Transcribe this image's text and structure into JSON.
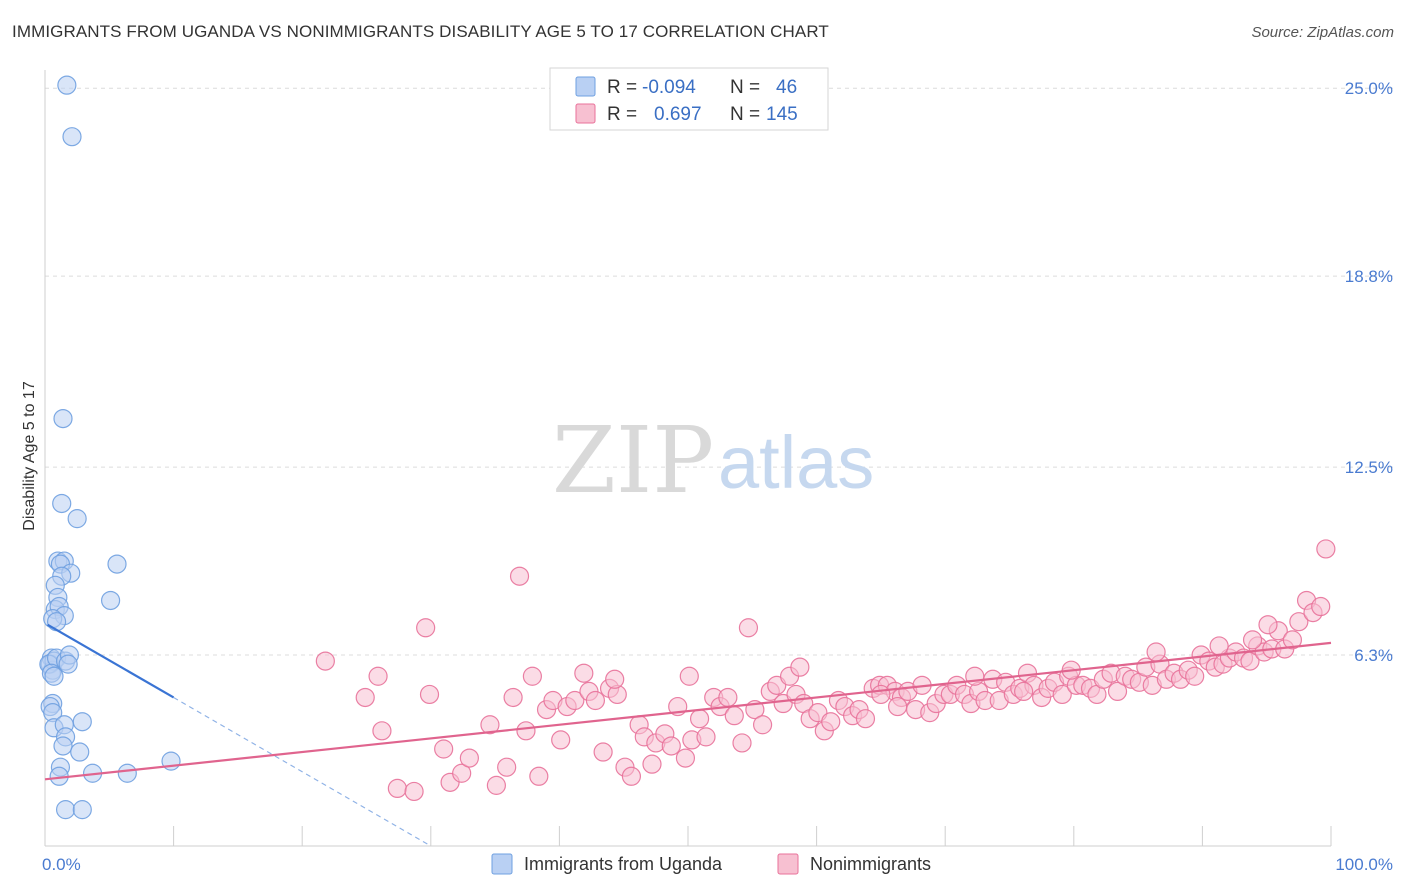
{
  "title": "IMMIGRANTS FROM UGANDA VS NONIMMIGRANTS DISABILITY AGE 5 TO 17 CORRELATION CHART",
  "source": "Source: ZipAtlas.com",
  "watermark": {
    "zip": "ZIP",
    "atlas": "atlas"
  },
  "colors": {
    "blue": "#6fa0e0",
    "blue_fill": "#b9d0f3",
    "pink": "#e8729a",
    "pink_fill": "#f7c0d1",
    "axis_text": "#4a7bd0"
  },
  "chart_data": {
    "type": "scatter",
    "title": "IMMIGRANTS FROM UGANDA VS NONIMMIGRANTS DISABILITY AGE 5 TO 17 CORRELATION CHART",
    "xlabel": "",
    "ylabel": "Disability Age 5 to 17",
    "xlim": [
      0,
      100
    ],
    "ylim": [
      0,
      25.6
    ],
    "x_tick_labels": [
      "0.0%",
      "100.0%"
    ],
    "y_ticks": [
      {
        "value": 6.3,
        "label": "6.3%"
      },
      {
        "value": 12.5,
        "label": "12.5%"
      },
      {
        "value": 18.8,
        "label": "18.8%"
      },
      {
        "value": 25.0,
        "label": "25.0%"
      }
    ],
    "grid": true,
    "legend": [
      {
        "series": "Immigrants from Uganda",
        "r_label": "R =",
        "r": "-0.094",
        "n_label": "N =",
        "n": "46"
      },
      {
        "series": "Nonimmigrants",
        "r_label": "R =",
        "r": "0.697",
        "n_label": "N =",
        "n": "145"
      }
    ],
    "series": [
      {
        "name": "Immigrants from Uganda",
        "color": "#6fa0e0",
        "trend": {
          "x0": 0.2,
          "y0": 7.3,
          "x1": 10.0,
          "y1": 4.9,
          "dash_to_x": 30.0,
          "dash_to_y": 0.0
        },
        "points": [
          [
            1.7,
            25.1
          ],
          [
            2.1,
            23.4
          ],
          [
            1.4,
            14.1
          ],
          [
            1.3,
            11.3
          ],
          [
            2.5,
            10.8
          ],
          [
            1.0,
            9.4
          ],
          [
            1.5,
            9.4
          ],
          [
            1.2,
            9.3
          ],
          [
            2.0,
            9.0
          ],
          [
            1.3,
            8.9
          ],
          [
            5.6,
            9.3
          ],
          [
            0.8,
            8.6
          ],
          [
            1.0,
            8.2
          ],
          [
            5.1,
            8.1
          ],
          [
            0.8,
            7.8
          ],
          [
            1.1,
            7.9
          ],
          [
            1.5,
            7.6
          ],
          [
            0.6,
            7.5
          ],
          [
            0.9,
            7.4
          ],
          [
            0.5,
            6.2
          ],
          [
            0.4,
            6.0
          ],
          [
            0.6,
            5.8
          ],
          [
            0.7,
            6.1
          ],
          [
            0.3,
            6.0
          ],
          [
            0.9,
            6.2
          ],
          [
            1.6,
            6.1
          ],
          [
            1.9,
            6.3
          ],
          [
            0.5,
            5.7
          ],
          [
            0.7,
            5.6
          ],
          [
            0.6,
            4.7
          ],
          [
            0.4,
            4.6
          ],
          [
            0.6,
            4.4
          ],
          [
            0.7,
            3.9
          ],
          [
            1.5,
            4.0
          ],
          [
            2.9,
            4.1
          ],
          [
            1.6,
            3.6
          ],
          [
            1.4,
            3.3
          ],
          [
            2.7,
            3.1
          ],
          [
            1.2,
            2.6
          ],
          [
            1.1,
            2.3
          ],
          [
            3.7,
            2.4
          ],
          [
            6.4,
            2.4
          ],
          [
            9.8,
            2.8
          ],
          [
            1.6,
            1.2
          ],
          [
            2.9,
            1.2
          ],
          [
            1.8,
            6.0
          ]
        ]
      },
      {
        "name": "Nonimmigrants",
        "color": "#e8729a",
        "trend": {
          "x0": 0.0,
          "y0": 2.2,
          "x1": 100.0,
          "y1": 6.7
        },
        "points": [
          [
            21.8,
            6.1
          ],
          [
            24.9,
            4.9
          ],
          [
            25.9,
            5.6
          ],
          [
            26.2,
            3.8
          ],
          [
            27.4,
            1.9
          ],
          [
            28.7,
            1.8
          ],
          [
            29.6,
            7.2
          ],
          [
            29.9,
            5.0
          ],
          [
            31.0,
            3.2
          ],
          [
            31.5,
            2.1
          ],
          [
            32.4,
            2.4
          ],
          [
            33.0,
            2.9
          ],
          [
            34.6,
            4.0
          ],
          [
            35.1,
            2.0
          ],
          [
            35.9,
            2.6
          ],
          [
            36.4,
            4.9
          ],
          [
            36.9,
            8.9
          ],
          [
            37.4,
            3.8
          ],
          [
            37.9,
            5.6
          ],
          [
            38.4,
            2.3
          ],
          [
            39.0,
            4.5
          ],
          [
            39.5,
            4.8
          ],
          [
            40.1,
            3.5
          ],
          [
            40.6,
            4.6
          ],
          [
            41.2,
            4.8
          ],
          [
            41.9,
            5.7
          ],
          [
            42.3,
            5.1
          ],
          [
            42.8,
            4.8
          ],
          [
            43.4,
            3.1
          ],
          [
            43.9,
            5.2
          ],
          [
            44.5,
            5.0
          ],
          [
            45.1,
            2.6
          ],
          [
            45.6,
            2.3
          ],
          [
            46.2,
            4.0
          ],
          [
            46.6,
            3.6
          ],
          [
            47.2,
            2.7
          ],
          [
            47.5,
            3.4
          ],
          [
            48.2,
            3.7
          ],
          [
            48.7,
            3.3
          ],
          [
            49.2,
            4.6
          ],
          [
            49.8,
            2.9
          ],
          [
            50.3,
            3.5
          ],
          [
            50.9,
            4.2
          ],
          [
            51.4,
            3.6
          ],
          [
            52.0,
            4.9
          ],
          [
            52.5,
            4.6
          ],
          [
            53.1,
            4.9
          ],
          [
            53.6,
            4.3
          ],
          [
            54.2,
            3.4
          ],
          [
            54.7,
            7.2
          ],
          [
            55.2,
            4.5
          ],
          [
            55.8,
            4.0
          ],
          [
            56.4,
            5.1
          ],
          [
            56.9,
            5.3
          ],
          [
            57.4,
            4.7
          ],
          [
            57.9,
            5.6
          ],
          [
            58.4,
            5.0
          ],
          [
            59.0,
            4.7
          ],
          [
            59.5,
            4.2
          ],
          [
            60.1,
            4.4
          ],
          [
            60.6,
            3.8
          ],
          [
            61.1,
            4.1
          ],
          [
            61.7,
            4.8
          ],
          [
            62.2,
            4.6
          ],
          [
            62.8,
            4.3
          ],
          [
            63.3,
            4.5
          ],
          [
            63.8,
            4.2
          ],
          [
            64.4,
            5.2
          ],
          [
            64.9,
            5.3
          ],
          [
            65.5,
            5.3
          ],
          [
            66.1,
            5.1
          ],
          [
            66.6,
            4.9
          ],
          [
            67.1,
            5.1
          ],
          [
            67.7,
            4.5
          ],
          [
            68.2,
            5.3
          ],
          [
            68.8,
            4.4
          ],
          [
            69.3,
            4.7
          ],
          [
            69.9,
            5.0
          ],
          [
            70.4,
            5.0
          ],
          [
            70.9,
            5.3
          ],
          [
            71.5,
            5.0
          ],
          [
            72.0,
            4.7
          ],
          [
            72.6,
            5.1
          ],
          [
            73.1,
            4.8
          ],
          [
            73.7,
            5.5
          ],
          [
            74.2,
            4.8
          ],
          [
            74.7,
            5.4
          ],
          [
            75.3,
            5.0
          ],
          [
            75.8,
            5.2
          ],
          [
            76.4,
            5.7
          ],
          [
            76.9,
            5.3
          ],
          [
            77.5,
            4.9
          ],
          [
            78.0,
            5.2
          ],
          [
            78.5,
            5.4
          ],
          [
            79.1,
            5.0
          ],
          [
            79.6,
            5.6
          ],
          [
            80.2,
            5.3
          ],
          [
            80.7,
            5.3
          ],
          [
            81.3,
            5.2
          ],
          [
            81.8,
            5.0
          ],
          [
            82.3,
            5.5
          ],
          [
            82.9,
            5.7
          ],
          [
            83.4,
            5.1
          ],
          [
            84.0,
            5.6
          ],
          [
            84.5,
            5.5
          ],
          [
            85.1,
            5.4
          ],
          [
            85.6,
            5.9
          ],
          [
            86.1,
            5.3
          ],
          [
            86.7,
            6.0
          ],
          [
            87.2,
            5.5
          ],
          [
            87.8,
            5.7
          ],
          [
            88.3,
            5.5
          ],
          [
            88.9,
            5.8
          ],
          [
            89.4,
            5.6
          ],
          [
            89.9,
            6.3
          ],
          [
            90.5,
            6.1
          ],
          [
            91.0,
            5.9
          ],
          [
            91.6,
            6.0
          ],
          [
            92.1,
            6.2
          ],
          [
            92.6,
            6.4
          ],
          [
            93.2,
            6.2
          ],
          [
            93.7,
            6.1
          ],
          [
            94.3,
            6.6
          ],
          [
            94.8,
            6.4
          ],
          [
            95.4,
            6.5
          ],
          [
            95.9,
            7.1
          ],
          [
            96.4,
            6.5
          ],
          [
            97.0,
            6.8
          ],
          [
            97.5,
            7.4
          ],
          [
            98.1,
            8.1
          ],
          [
            98.6,
            7.7
          ],
          [
            99.2,
            7.9
          ],
          [
            99.6,
            9.8
          ],
          [
            72.3,
            5.6
          ],
          [
            66.3,
            4.6
          ],
          [
            58.7,
            5.9
          ],
          [
            50.1,
            5.6
          ],
          [
            44.3,
            5.5
          ],
          [
            93.9,
            6.8
          ],
          [
            86.4,
            6.4
          ],
          [
            91.3,
            6.6
          ],
          [
            79.8,
            5.8
          ],
          [
            76.1,
            5.1
          ],
          [
            95.1,
            7.3
          ],
          [
            65.0,
            5.0
          ]
        ]
      }
    ]
  }
}
